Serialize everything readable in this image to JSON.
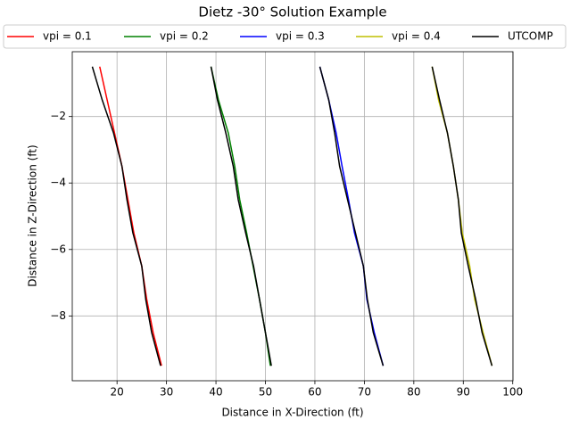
{
  "chart_data": {
    "type": "line",
    "title": "Dietz -30° Solution Example",
    "xlabel": "Distance in X-Direction (ft)",
    "ylabel": "Distance in Z-Direction (ft)",
    "xlim": [
      10.95,
      100.05
    ],
    "ylim": [
      -9.95,
      -0.05
    ],
    "xticks": [
      20,
      30,
      40,
      50,
      60,
      70,
      80,
      90,
      100
    ],
    "yticks": [
      {
        "value": -2,
        "label": "−2"
      },
      {
        "value": -4,
        "label": "−4"
      },
      {
        "value": -6,
        "label": "−6"
      },
      {
        "value": -8,
        "label": "−8"
      }
    ],
    "grid": true,
    "legend": "top",
    "series": [
      {
        "name": "vpi = 0.1",
        "color": "#ff0000",
        "x": [
          16.5,
          18,
          19.5,
          21,
          22.2,
          23.4,
          25,
          26,
          27.3,
          29
        ],
        "y": [
          -0.5,
          -1.5,
          -2.5,
          -3.5,
          -4.5,
          -5.5,
          -6.5,
          -7.5,
          -8.5,
          -9.5
        ]
      },
      {
        "name": "vpi = 0.2",
        "color": "#008000",
        "x": [
          39,
          40.5,
          42.5,
          43.8,
          44.8,
          46.2,
          47.5,
          48.8,
          50,
          51
        ],
        "y": [
          -0.5,
          -1.5,
          -2.5,
          -3.5,
          -4.5,
          -5.5,
          -6.5,
          -7.5,
          -8.5,
          -9.5
        ]
      },
      {
        "name": "vpi = 0.3",
        "color": "#0000ff",
        "x": [
          61,
          62.8,
          64.3,
          65.5,
          66.8,
          68,
          69.8,
          70.5,
          72,
          73.8
        ],
        "y": [
          -0.5,
          -1.5,
          -2.5,
          -3.5,
          -4.5,
          -5.5,
          -6.5,
          -7.5,
          -8.5,
          -9.5
        ]
      },
      {
        "name": "vpi = 0.4",
        "color": "#bfbf00",
        "x": [
          83.7,
          85,
          86.8,
          88,
          89,
          89.8,
          91.3,
          92.3,
          94,
          95.8
        ],
        "y": [
          -0.5,
          -1.5,
          -2.5,
          -3.5,
          -4.5,
          -5.5,
          -6.5,
          -7.5,
          -8.5,
          -9.5
        ]
      },
      {
        "name": "UTCOMP",
        "color": "#000000",
        "x": [
          15,
          17,
          19.3,
          21,
          22,
          23.2,
          25,
          25.8,
          27,
          28.8,
          null,
          39,
          40.3,
          42,
          43.5,
          44.5,
          46,
          47.6,
          48.8,
          50,
          51.2,
          null,
          61,
          62.8,
          64,
          65,
          66.6,
          68.2,
          69.8,
          70.6,
          71.8,
          73.8,
          null,
          83.7,
          85.2,
          86.8,
          88,
          89,
          89.6,
          91,
          92.5,
          93.8,
          95.8
        ],
        "y": [
          -0.5,
          -1.5,
          -2.5,
          -3.5,
          -4.5,
          -5.5,
          -6.5,
          -7.5,
          -8.5,
          -9.5,
          null,
          -0.5,
          -1.5,
          -2.5,
          -3.5,
          -4.5,
          -5.5,
          -6.5,
          -7.5,
          -8.5,
          -9.5,
          null,
          -0.5,
          -1.5,
          -2.5,
          -3.5,
          -4.5,
          -5.5,
          -6.5,
          -7.5,
          -8.5,
          -9.5,
          null,
          -0.5,
          -1.5,
          -2.5,
          -3.5,
          -4.5,
          -5.5,
          -6.5,
          -7.5,
          -8.5,
          -9.5
        ]
      }
    ]
  }
}
